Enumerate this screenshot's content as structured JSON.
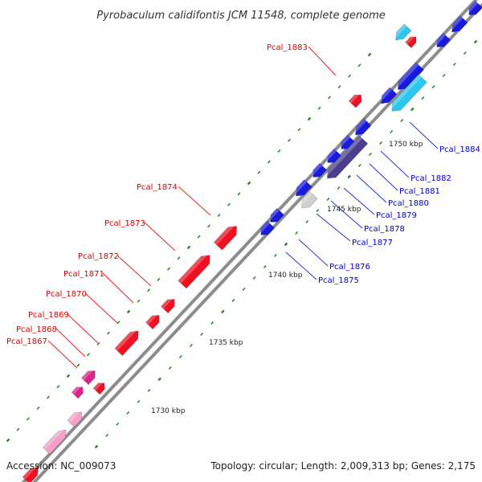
{
  "title": "Pyrobaculum calidifontis JCM 11548, complete genome",
  "footer": {
    "accession": "Accession: NC_009073",
    "summary": "Topology: circular; Length: 2,009,313 bp; Genes: 2,175"
  },
  "colors": {
    "forward_label": "#dd0000",
    "reverse_label": "#0000cc",
    "backbone": "#888888",
    "tick": "#228822"
  },
  "scale_labels": [
    "1730 kbp",
    "1735 kbp",
    "1740 kbp",
    "1745 kbp",
    "1750 kbp"
  ],
  "forward_genes": [
    {
      "name": "Pcal_1867",
      "color": "#ee1122"
    },
    {
      "name": "Pcal_1868",
      "color": "#ee1122"
    },
    {
      "name": "Pcal_1869",
      "color": "#ee1122"
    },
    {
      "name": "Pcal_1870",
      "color": "#ee1122"
    },
    {
      "name": "Pcal_1871",
      "color": "#ee1122"
    },
    {
      "name": "Pcal_1872",
      "color": "#ee1122"
    },
    {
      "name": "Pcal_1873",
      "color": "#ee1122"
    },
    {
      "name": "Pcal_1874",
      "color": "#ee1122"
    },
    {
      "name": "Pcal_1883",
      "color": "#ee1122"
    }
  ],
  "reverse_genes": [
    {
      "name": "Pcal_1875",
      "color": "#1a1adc"
    },
    {
      "name": "Pcal_1876",
      "color": "#1a1adc"
    },
    {
      "name": "Pcal_1877",
      "color": "#1a1adc"
    },
    {
      "name": "Pcal_1878",
      "color": "#1a1adc"
    },
    {
      "name": "Pcal_1879",
      "color": "#1a1adc"
    },
    {
      "name": "Pcal_1880",
      "color": "#1a1adc"
    },
    {
      "name": "Pcal_1881",
      "color": "#1a1adc"
    },
    {
      "name": "Pcal_1882",
      "color": "#1a1adc"
    },
    {
      "name": "Pcal_1884",
      "color": "#1a1adc"
    }
  ]
}
